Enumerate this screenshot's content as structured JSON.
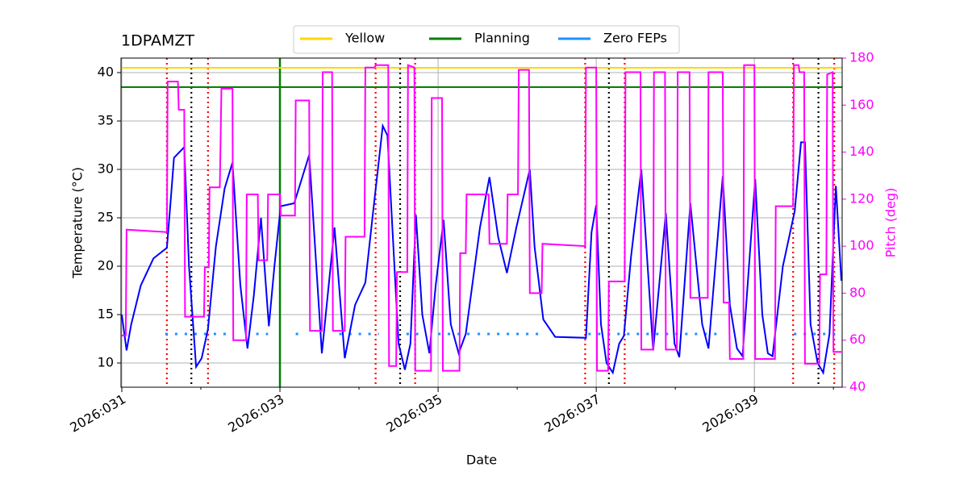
{
  "chart_data": {
    "type": "line",
    "title": "1DPAMZT",
    "xlabel": "Date",
    "ylabel": "Temperature (°C)",
    "y2label": "Pitch (deg)",
    "y2color": "#ff00ff",
    "xlim": [
      30.99,
      40.11
    ],
    "xticks": [
      {
        "value": 31,
        "label": "2026:031"
      },
      {
        "value": 33,
        "label": "2026:033"
      },
      {
        "value": 35,
        "label": "2026:035"
      },
      {
        "value": 37,
        "label": "2026:037"
      },
      {
        "value": 39,
        "label": "2026:039"
      }
    ],
    "xminorticks": [
      32,
      34,
      36,
      38,
      40
    ],
    "ylim": [
      7.5,
      41.5
    ],
    "yticks": [
      10,
      15,
      20,
      25,
      30,
      35,
      40
    ],
    "y2lim": [
      40,
      180
    ],
    "y2ticks": [
      40,
      60,
      80,
      100,
      120,
      140,
      160,
      180
    ],
    "grid": true,
    "legend": "upper center",
    "series": [
      {
        "name": "Yellow",
        "color": "#ffd700",
        "x": [
          30.99,
          40.11
        ],
        "values": [
          40.5,
          40.5
        ]
      },
      {
        "name": "Planning",
        "color": "#008000",
        "x": [
          30.99,
          40.11
        ],
        "values": [
          38.5,
          38.5
        ]
      },
      {
        "name": "Zero FEPs",
        "color": "#1e90ff",
        "style": "dotted",
        "x": [
          31.55,
          32.4,
          32.5,
          32.7,
          32.85,
          33.0,
          33.2,
          33.25,
          33.5,
          33.75,
          34.25,
          34.4,
          34.6,
          34.75,
          34.9,
          35.0,
          35.4,
          35.45,
          35.5,
          36.3,
          36.6,
          36.9,
          38.6,
          39.0,
          39.5,
          40.05
        ],
        "values": [
          13,
          13,
          null,
          13,
          13,
          null,
          13,
          13,
          null,
          13,
          13,
          null,
          13,
          13,
          null,
          13,
          13,
          null,
          13,
          13,
          null,
          13,
          13,
          null,
          13,
          13
        ]
      },
      {
        "color": "#0000ff",
        "x": [
          31.0,
          31.06,
          31.12,
          31.24,
          31.4,
          31.57,
          31.62,
          31.66,
          31.79,
          31.85,
          31.94,
          32.01,
          32.09,
          32.19,
          32.3,
          32.4,
          32.5,
          32.59,
          32.67,
          32.76,
          32.86,
          32.93,
          33.01,
          33.18,
          33.37,
          33.53,
          33.69,
          33.82,
          33.95,
          34.08,
          34.17,
          34.3,
          34.36,
          34.5,
          34.58,
          34.65,
          34.72,
          34.8,
          34.89,
          34.97,
          35.07,
          35.16,
          35.26,
          35.35,
          35.53,
          35.65,
          35.76,
          35.87,
          35.99,
          36.16,
          36.22,
          36.33,
          36.48,
          36.87,
          36.94,
          37.0,
          37.06,
          37.13,
          37.21,
          37.29,
          37.35,
          37.44,
          37.57,
          37.72,
          37.88,
          37.99,
          38.05,
          38.19,
          38.34,
          38.42,
          38.6,
          38.69,
          38.78,
          38.85,
          39.01,
          39.1,
          39.17,
          39.23,
          39.36,
          39.51,
          39.59,
          39.64,
          39.71,
          39.8,
          39.87,
          39.95,
          40.03,
          40.1
        ],
        "values": [
          15,
          11.3,
          14,
          18,
          20.8,
          21.9,
          27,
          31.2,
          32.3,
          20,
          9.6,
          10.5,
          13.5,
          22,
          28,
          30.7,
          18,
          11.5,
          17,
          25,
          13.8,
          20,
          26.2,
          26.5,
          31.5,
          11,
          24,
          10.5,
          16,
          18.3,
          25,
          34.5,
          33.5,
          12,
          9.3,
          12,
          25.3,
          15,
          11,
          18,
          24.8,
          14,
          11,
          13,
          24,
          29.2,
          23,
          19.3,
          24,
          30,
          22,
          14.5,
          12.7,
          12.6,
          23.5,
          26.3,
          14,
          10,
          9,
          12,
          12.8,
          21,
          30,
          11.3,
          25.5,
          12,
          10.6,
          26.5,
          14,
          11.5,
          29.3,
          16,
          11.5,
          10.7,
          29,
          15,
          11,
          10.7,
          20,
          25.7,
          32.8,
          32.8,
          14,
          10,
          9,
          13,
          28.3,
          18.5
        ]
      },
      {
        "color": "#ff00ff",
        "axis": "y2",
        "x": [
          31.0,
          31.05,
          31.06,
          31.57,
          31.58,
          31.71,
          31.72,
          31.79,
          31.8,
          32.04,
          32.05,
          32.1,
          32.11,
          32.24,
          32.26,
          32.4,
          32.41,
          32.57,
          32.58,
          32.72,
          32.73,
          32.84,
          32.85,
          33.0,
          33.01,
          33.19,
          33.2,
          33.37,
          33.38,
          33.53,
          33.54,
          33.66,
          33.67,
          33.82,
          33.83,
          34.07,
          34.08,
          34.2,
          34.21,
          34.37,
          34.38,
          34.47,
          34.48,
          34.61,
          34.62,
          34.7,
          34.71,
          34.91,
          34.92,
          35.05,
          35.06,
          35.27,
          35.28,
          35.35,
          35.36,
          35.64,
          35.65,
          35.87,
          35.88,
          36.01,
          36.02,
          36.15,
          36.16,
          36.31,
          36.32,
          36.86,
          36.87,
          37.0,
          37.01,
          37.15,
          37.16,
          37.36,
          37.37,
          37.56,
          37.57,
          37.72,
          37.73,
          37.87,
          37.88,
          38.02,
          38.03,
          38.18,
          38.19,
          38.41,
          38.42,
          38.6,
          38.61,
          38.68,
          38.69,
          38.86,
          38.87,
          39.0,
          39.01,
          39.26,
          39.27,
          39.49,
          39.5,
          39.56,
          39.57,
          39.63,
          39.64,
          39.82,
          39.83,
          39.91,
          39.92,
          39.99,
          40.0,
          40.1
        ],
        "values": [
          62,
          62,
          107,
          106,
          170,
          170,
          158,
          158,
          70,
          70,
          91,
          91,
          125,
          125,
          167,
          167,
          60,
          60,
          122,
          122,
          94,
          94,
          122,
          122,
          113,
          113,
          162,
          162,
          64,
          64,
          174,
          174,
          64,
          64,
          104,
          104,
          176,
          176,
          177,
          177,
          49,
          49,
          89,
          89,
          177,
          176,
          47,
          47,
          163,
          163,
          47,
          47,
          97,
          97,
          122,
          122,
          101,
          101,
          122,
          122,
          175,
          175,
          80,
          80,
          101,
          100,
          176,
          176,
          47,
          47,
          85,
          85,
          174,
          174,
          56,
          56,
          174,
          174,
          56,
          56,
          174,
          174,
          78,
          78,
          174,
          174,
          76,
          76,
          52,
          52,
          177,
          177,
          52,
          52,
          117,
          117,
          177,
          177,
          174,
          174,
          50,
          50,
          88,
          88,
          173,
          174,
          55,
          55
        ]
      }
    ],
    "vlines": [
      {
        "x": 33.0,
        "color": "#008000",
        "style": "solid"
      },
      {
        "x": 31.57,
        "color": "#ff0000",
        "style": "dotted"
      },
      {
        "x": 32.09,
        "color": "#ff0000",
        "style": "dotted"
      },
      {
        "x": 34.21,
        "color": "#ff0000",
        "style": "dotted"
      },
      {
        "x": 34.71,
        "color": "#ff0000",
        "style": "dotted"
      },
      {
        "x": 36.86,
        "color": "#ff0000",
        "style": "dotted"
      },
      {
        "x": 37.36,
        "color": "#ff0000",
        "style": "dotted"
      },
      {
        "x": 39.49,
        "color": "#ff0000",
        "style": "dotted"
      },
      {
        "x": 40.01,
        "color": "#ff0000",
        "style": "dotted"
      },
      {
        "x": 31.88,
        "color": "#000000",
        "style": "dotted"
      },
      {
        "x": 34.52,
        "color": "#000000",
        "style": "dotted"
      },
      {
        "x": 37.16,
        "color": "#000000",
        "style": "dotted"
      },
      {
        "x": 39.81,
        "color": "#000000",
        "style": "dotted"
      }
    ]
  }
}
